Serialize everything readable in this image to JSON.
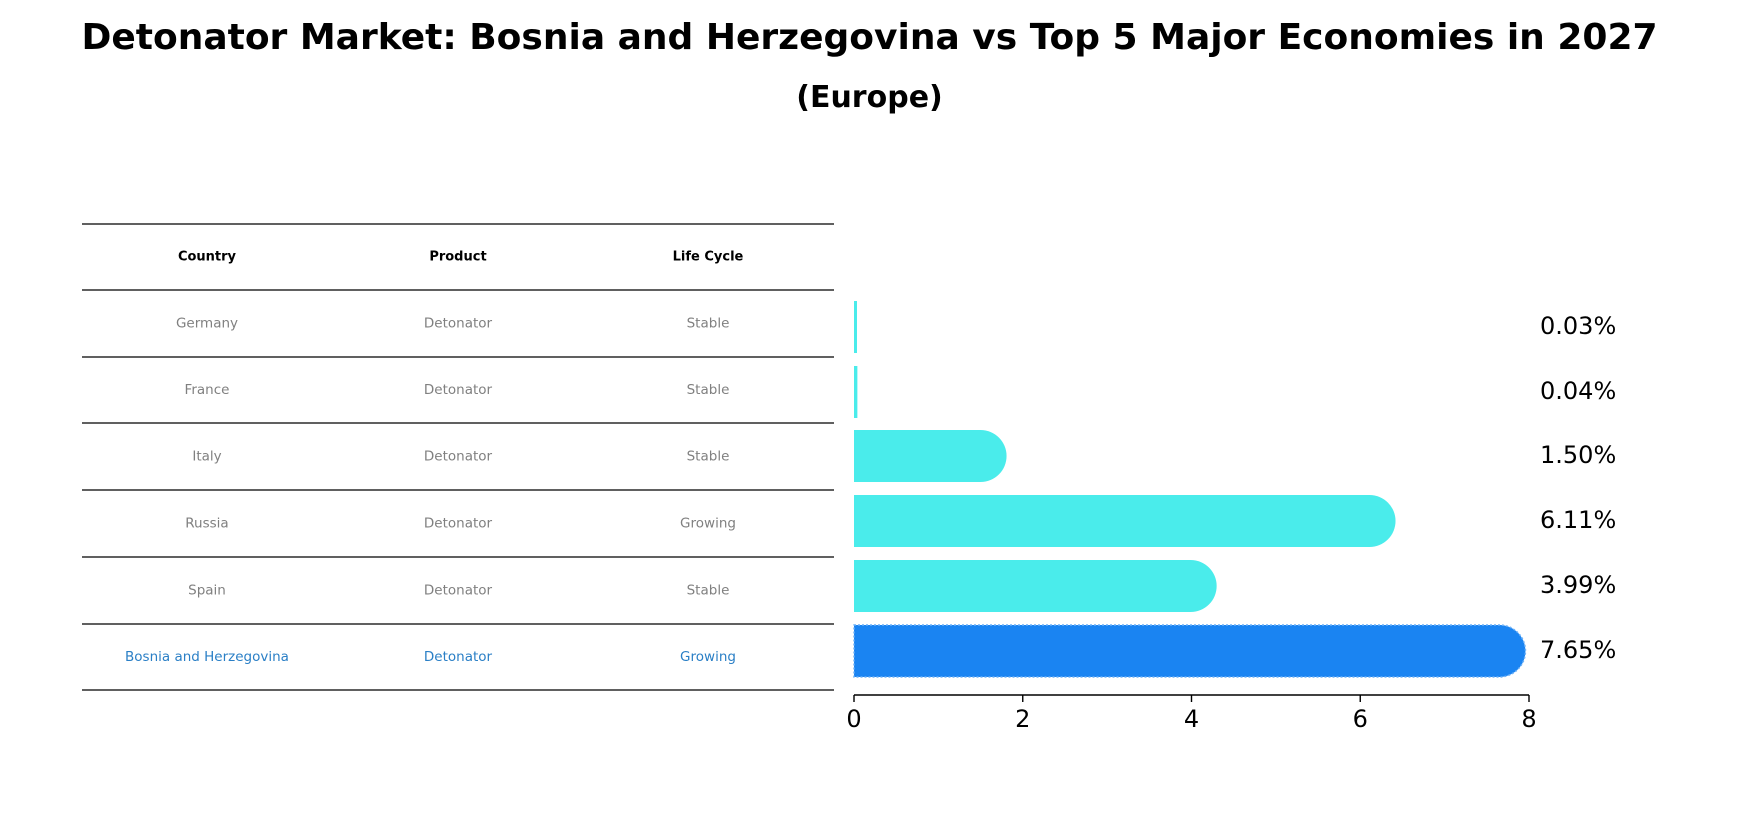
{
  "title": "Detonator Market: Bosnia and Herzegovina vs Top 5 Major Economies in 2027",
  "subtitle": "(Europe)",
  "table": {
    "headers": [
      "Country",
      "Product",
      "Life Cycle"
    ],
    "rows": [
      {
        "country": "Germany",
        "product": "Detonator",
        "life_cycle": "Stable"
      },
      {
        "country": "France",
        "product": "Detonator",
        "life_cycle": "Stable"
      },
      {
        "country": "Italy",
        "product": "Detonator",
        "life_cycle": "Stable"
      },
      {
        "country": "Russia",
        "product": "Detonator",
        "life_cycle": "Growing"
      },
      {
        "country": "Spain",
        "product": "Detonator",
        "life_cycle": "Stable"
      },
      {
        "country": "Bosnia and Herzegovina",
        "product": "Detonator",
        "life_cycle": "Growing"
      }
    ]
  },
  "colors": {
    "bar": "#4aeceb",
    "highlight_bar": "#1a84f2",
    "highlight_text": "#2a7fc6",
    "muted_text": "#808080"
  },
  "chart_data": {
    "type": "bar",
    "orientation": "horizontal",
    "categories": [
      "Germany",
      "France",
      "Italy",
      "Russia",
      "Spain",
      "Bosnia and Herzegovina"
    ],
    "values": [
      0.03,
      0.04,
      1.5,
      6.11,
      3.99,
      7.65
    ],
    "value_labels": [
      "0.03%",
      "0.04%",
      "1.50%",
      "6.11%",
      "3.99%",
      "7.65%"
    ],
    "highlight": "Bosnia and Herzegovina",
    "xlim": [
      0,
      8
    ],
    "xticks": [
      0,
      2,
      4,
      6,
      8
    ],
    "grid": false
  }
}
